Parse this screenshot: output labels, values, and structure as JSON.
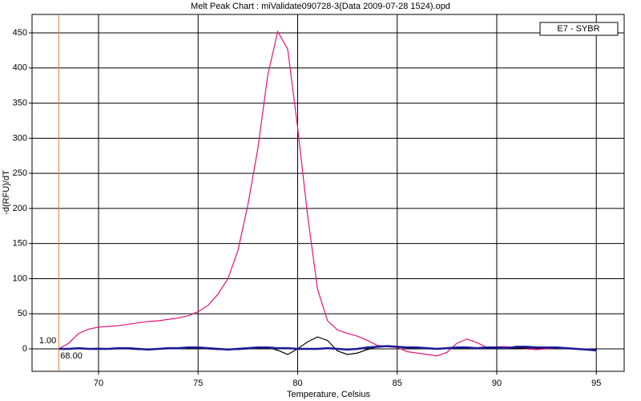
{
  "chart_data": {
    "type": "line",
    "title": "Melt Peak Chart : miValidate090728-3(Data 2009-07-28 1524).opd",
    "x_label": "Temperature, Celsius",
    "y_label": "-d(RFU)/dT",
    "legend_title": "E7 - SYBR",
    "legend_position": "upper right",
    "grid": true,
    "cursor": {
      "x": {
        "value": 68,
        "label": "68.00"
      },
      "y": {
        "value": 1,
        "label": "1.00"
      },
      "color": "#e07a3c"
    },
    "xlim": [
      66.66,
      96.4
    ],
    "ylim": [
      -32,
      476.3
    ],
    "xticks": [
      70,
      75,
      80,
      85,
      90,
      95
    ],
    "yticks": [
      0,
      50,
      100,
      150,
      200,
      250,
      300,
      350,
      400,
      450
    ],
    "x": [
      68,
      68.5,
      69,
      69.5,
      70,
      70.5,
      71,
      71.5,
      72,
      72.5,
      73,
      73.5,
      74,
      74.5,
      75,
      75.5,
      76,
      76.5,
      77,
      77.5,
      78,
      78.5,
      79,
      79.5,
      80,
      80.5,
      81,
      81.5,
      82,
      82.5,
      83,
      83.5,
      84,
      84.5,
      85,
      85.5,
      86,
      86.5,
      87,
      87.5,
      88,
      88.5,
      89,
      89.5,
      90,
      90.5,
      91,
      91.5,
      92,
      92.5,
      93,
      93.5,
      94,
      94.5,
      95
    ],
    "series": [
      {
        "color": "#e0147a",
        "values": [
          0,
          8,
          22,
          28,
          31,
          32,
          33,
          35,
          37,
          39,
          40,
          42,
          44,
          47,
          53,
          62,
          78,
          100,
          140,
          205,
          285,
          390,
          452,
          427,
          315,
          190,
          85,
          40,
          27,
          22,
          18,
          12,
          5,
          3,
          2,
          -4,
          -6,
          -8,
          -10,
          -5,
          8,
          14,
          9,
          2,
          3,
          3,
          2,
          0,
          -1,
          0,
          1,
          1,
          0,
          -1,
          -2
        ]
      },
      {
        "color": "#000000",
        "values": [
          0,
          0,
          0,
          0,
          1,
          0,
          0,
          0,
          -1,
          0,
          0,
          0,
          1,
          0,
          1,
          0,
          -1,
          -1,
          -1,
          0,
          1,
          2,
          -2,
          -8,
          0,
          10,
          17,
          12,
          -3,
          -8,
          -6,
          -1,
          3,
          4,
          3,
          2,
          1,
          0,
          0,
          1,
          2,
          1,
          0,
          1,
          1,
          0,
          1,
          1,
          2,
          1,
          1,
          0,
          0,
          -1,
          -3
        ]
      },
      {
        "color": "#1a1a9a",
        "values": [
          0,
          0,
          1,
          0,
          0,
          0,
          1,
          1,
          0,
          -1,
          0,
          1,
          1,
          2,
          2,
          1,
          0,
          -1,
          0,
          1,
          2,
          2,
          1,
          1,
          0,
          0,
          0,
          1,
          0,
          -1,
          0,
          2,
          3,
          4,
          3,
          2,
          2,
          1,
          0,
          1,
          2,
          2,
          1,
          2,
          2,
          1,
          3,
          3,
          2,
          2,
          2,
          1,
          0,
          -1,
          -2
        ]
      }
    ]
  }
}
